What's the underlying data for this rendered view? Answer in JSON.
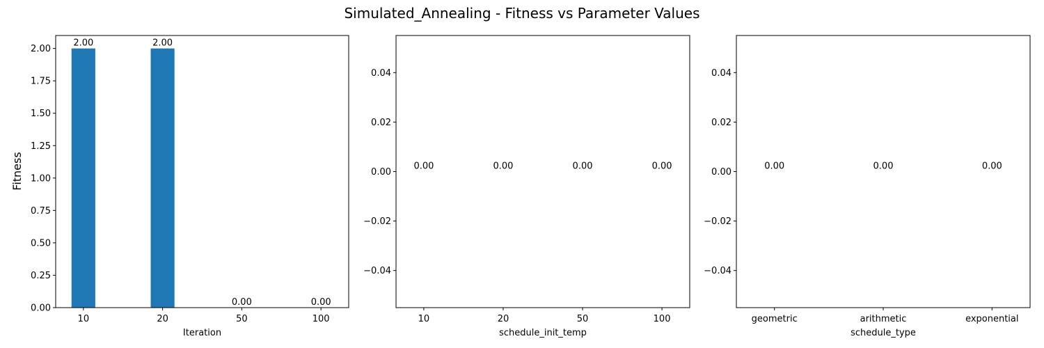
{
  "figure": {
    "title": "Simulated_Annealing - Fitness vs Parameter Values",
    "ylabel": "Fitness"
  },
  "chart_data": [
    {
      "type": "bar",
      "categories": [
        "10",
        "20",
        "50",
        "100"
      ],
      "values": [
        2.0,
        2.0,
        0.0,
        0.0
      ],
      "data_labels": [
        "2.00",
        "2.00",
        "0.00",
        "0.00"
      ],
      "xlabel": "Iteration",
      "ylabel": "Fitness",
      "ylim": [
        0,
        2.1
      ],
      "yticks": [
        0.0,
        0.25,
        0.5,
        0.75,
        1.0,
        1.25,
        1.5,
        1.75,
        2.0
      ],
      "ytick_labels": [
        "0.00",
        "0.25",
        "0.50",
        "0.75",
        "1.00",
        "1.25",
        "1.50",
        "1.75",
        "2.00"
      ],
      "bar_color": "#1f77b4",
      "grid": false
    },
    {
      "type": "bar",
      "categories": [
        "10",
        "20",
        "50",
        "100"
      ],
      "values": [
        0.0,
        0.0,
        0.0,
        0.0
      ],
      "data_labels": [
        "0.00",
        "0.00",
        "0.00",
        "0.00"
      ],
      "xlabel": "schedule_init_temp",
      "ylim": [
        -0.055,
        0.055
      ],
      "yticks": [
        -0.04,
        -0.02,
        0.0,
        0.02,
        0.04
      ],
      "ytick_labels": [
        "−0.04",
        "−0.02",
        "0.00",
        "0.02",
        "0.04"
      ],
      "bar_color": "#1f77b4",
      "grid": false
    },
    {
      "type": "bar",
      "categories": [
        "geometric",
        "arithmetic",
        "exponential"
      ],
      "values": [
        0.0,
        0.0,
        0.0
      ],
      "data_labels": [
        "0.00",
        "0.00",
        "0.00"
      ],
      "xlabel": "schedule_type",
      "ylim": [
        -0.055,
        0.055
      ],
      "yticks": [
        -0.04,
        -0.02,
        0.0,
        0.02,
        0.04
      ],
      "ytick_labels": [
        "−0.04",
        "−0.02",
        "0.00",
        "0.02",
        "0.04"
      ],
      "bar_color": "#1f77b4",
      "grid": false
    }
  ]
}
